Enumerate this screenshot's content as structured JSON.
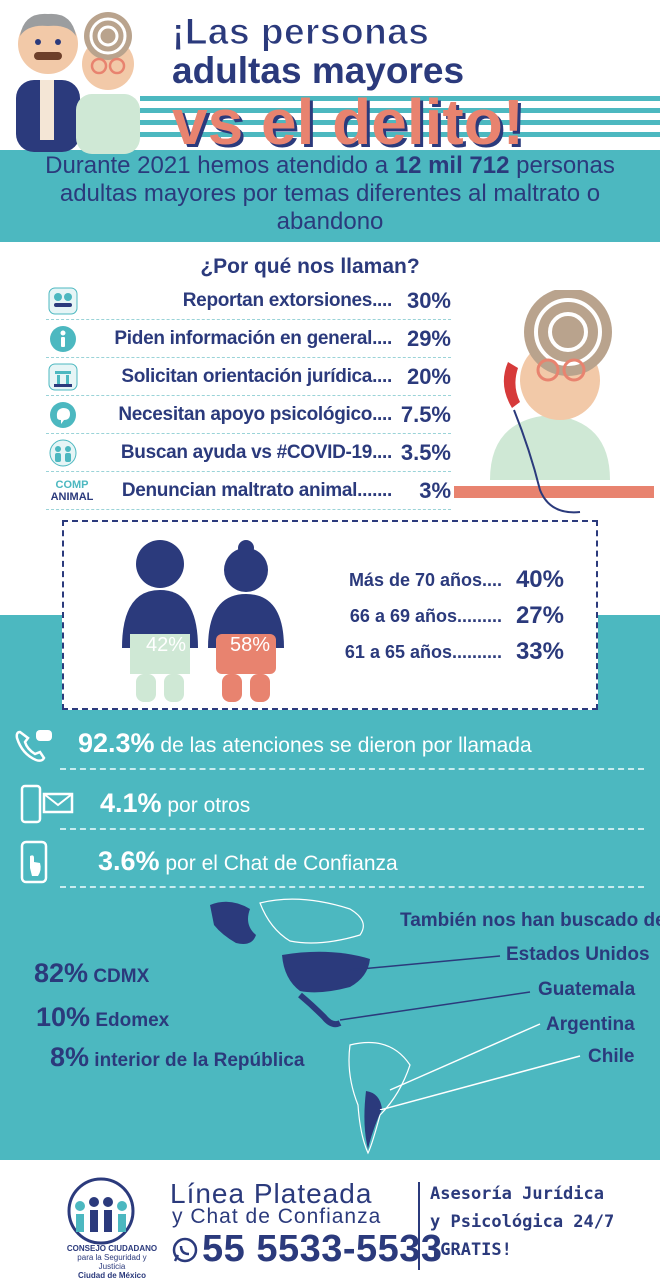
{
  "header": {
    "title_line1": "¡Las personas",
    "title_line2": "adultas mayores",
    "title_line3": "vs el delito!"
  },
  "intro": {
    "before": "Durante 2021 hemos atendido a ",
    "highlight": "12 mil 712",
    "after": " personas adultas mayores por temas diferentes al maltrato o abandono"
  },
  "reasons": {
    "title": "¿Por qué nos llaman?",
    "items": [
      {
        "label": "Reportan extorsiones....",
        "value": "30%",
        "icon": "handshake-icon"
      },
      {
        "label": "Piden información en general....",
        "value": "29%",
        "icon": "info-icon"
      },
      {
        "label": "Solicitan orientación jurídica....",
        "value": "20%",
        "icon": "legal-icon"
      },
      {
        "label": "Necesitan apoyo psicológico....",
        "value": "7.5%",
        "icon": "brain-icon"
      },
      {
        "label": "Buscan ayuda vs #COVID-19....",
        "value": "3.5%",
        "icon": "people-icon"
      },
      {
        "label": "Denuncian maltrato animal.......",
        "value": "3%",
        "icon": "paw-icon"
      }
    ],
    "animal_logo_line1": "COMP",
    "animal_logo_line2": "ANIMAL"
  },
  "gender": {
    "male_pct": "42%",
    "female_pct": "58%"
  },
  "ages": [
    {
      "label": "Más de 70 años....",
      "value": "40%"
    },
    {
      "label": "66 a 69 años.........",
      "value": "27%"
    },
    {
      "label": "61 a 65 años..........",
      "value": "33%"
    }
  ],
  "channels": [
    {
      "value": "92.3%",
      "text": " de las atenciones se dieron por llamada",
      "icon": "phone-call-icon"
    },
    {
      "value": "4.1%",
      "text": " por otros",
      "icon": "email-icon"
    },
    {
      "value": "3.6%",
      "text": " por el Chat de Confianza",
      "icon": "mobile-chat-icon"
    }
  ],
  "map": {
    "heading": "También nos han buscado de",
    "countries": [
      "Estados Unidos",
      "Guatemala",
      "Argentina",
      "Chile"
    ]
  },
  "origin_stats": [
    {
      "value": "82%",
      "label": " CDMX"
    },
    {
      "value": "10%",
      "label": " Edomex"
    },
    {
      "value": "8%",
      "label": " interior de la República"
    }
  ],
  "footer": {
    "logo_line1": "CONSEJO CIUDADANO",
    "logo_line2": "para la Seguridad y Justicia",
    "logo_line3": "Ciudad de México",
    "line_title": "Línea Plateada",
    "line_sub": "y Chat de Confianza",
    "phone": "55 5533-5533",
    "service_line1": "Asesoría Jurídica",
    "service_line2": "y Psicológica 24/7",
    "service_line3": "¡GRATIS!"
  },
  "colors": {
    "navy": "#2b3a7c",
    "teal": "#4cb8c0",
    "coral": "#e8836f",
    "mint": "#cfe8d5"
  }
}
